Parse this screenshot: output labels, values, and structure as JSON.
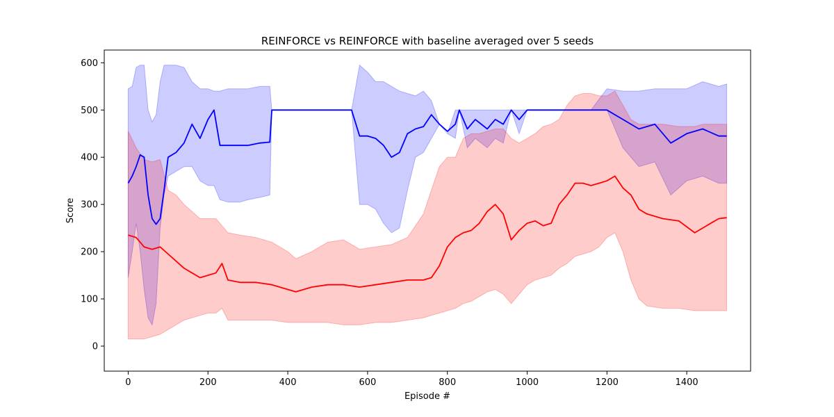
{
  "chart_data": {
    "type": "line",
    "title": "REINFORCE vs REINFORCE with baseline averaged over 5 seeds",
    "xlabel": "Episode #",
    "ylabel": "Score",
    "xlim": [
      -60,
      1560
    ],
    "ylim": [
      -53,
      627
    ],
    "x_ticks": [
      0,
      200,
      400,
      600,
      800,
      1000,
      1200,
      1400
    ],
    "y_ticks": [
      0,
      100,
      200,
      300,
      400,
      500,
      600
    ],
    "grid": false,
    "legend": "none",
    "series": [
      {
        "color": "#0000ff",
        "band_color": "#0000ff",
        "x": [
          0,
          10,
          20,
          30,
          40,
          50,
          60,
          70,
          80,
          90,
          100,
          120,
          140,
          160,
          180,
          200,
          215,
          230,
          250,
          280,
          300,
          330,
          355,
          360,
          380,
          400,
          420,
          440,
          480,
          520,
          560,
          580,
          600,
          620,
          640,
          660,
          680,
          700,
          720,
          740,
          760,
          780,
          800,
          820,
          830,
          850,
          870,
          900,
          920,
          940,
          960,
          980,
          1000,
          1040,
          1080,
          1120,
          1160,
          1200,
          1240,
          1280,
          1320,
          1360,
          1400,
          1440,
          1480,
          1500
        ],
        "y": [
          345,
          360,
          380,
          405,
          400,
          320,
          270,
          258,
          270,
          330,
          400,
          410,
          430,
          470,
          440,
          480,
          500,
          425,
          425,
          425,
          425,
          430,
          432,
          500,
          500,
          500,
          500,
          500,
          500,
          500,
          500,
          445,
          445,
          440,
          425,
          400,
          410,
          450,
          460,
          465,
          490,
          470,
          455,
          470,
          500,
          460,
          480,
          460,
          480,
          470,
          500,
          480,
          500,
          500,
          500,
          500,
          500,
          500,
          480,
          460,
          470,
          430,
          450,
          460,
          445,
          445
        ],
        "upper": [
          545,
          550,
          590,
          595,
          595,
          500,
          475,
          490,
          560,
          595,
          595,
          595,
          590,
          560,
          545,
          545,
          540,
          540,
          545,
          545,
          545,
          550,
          550,
          500,
          500,
          500,
          500,
          500,
          500,
          500,
          500,
          595,
          580,
          560,
          560,
          550,
          540,
          535,
          530,
          540,
          520,
          470,
          450,
          500,
          500,
          500,
          500,
          500,
          500,
          500,
          500,
          500,
          500,
          500,
          500,
          500,
          500,
          545,
          540,
          540,
          545,
          545,
          545,
          560,
          550,
          555
        ],
        "lower": [
          145,
          200,
          260,
          200,
          120,
          60,
          45,
          90,
          250,
          320,
          360,
          370,
          380,
          380,
          350,
          340,
          340,
          310,
          305,
          305,
          310,
          315,
          320,
          500,
          500,
          500,
          500,
          500,
          500,
          500,
          500,
          300,
          300,
          290,
          260,
          240,
          250,
          330,
          400,
          410,
          440,
          470,
          450,
          440,
          500,
          420,
          440,
          420,
          440,
          430,
          500,
          450,
          500,
          500,
          500,
          500,
          500,
          500,
          420,
          380,
          390,
          320,
          350,
          360,
          345,
          345
        ]
      },
      {
        "color": "#ff0000",
        "band_color": "#ff0000",
        "x": [
          0,
          20,
          40,
          60,
          80,
          100,
          120,
          140,
          160,
          180,
          200,
          220,
          235,
          250,
          280,
          320,
          360,
          400,
          420,
          460,
          500,
          540,
          580,
          620,
          660,
          700,
          740,
          760,
          780,
          800,
          820,
          840,
          860,
          880,
          900,
          920,
          940,
          960,
          980,
          1000,
          1020,
          1040,
          1060,
          1080,
          1100,
          1120,
          1140,
          1160,
          1180,
          1200,
          1220,
          1240,
          1260,
          1280,
          1300,
          1340,
          1380,
          1420,
          1440,
          1460,
          1480,
          1500
        ],
        "y": [
          235,
          230,
          210,
          205,
          210,
          195,
          180,
          165,
          155,
          145,
          150,
          155,
          175,
          140,
          135,
          135,
          130,
          120,
          115,
          125,
          130,
          130,
          125,
          130,
          135,
          140,
          140,
          145,
          170,
          210,
          230,
          240,
          245,
          260,
          285,
          300,
          280,
          225,
          245,
          260,
          265,
          255,
          260,
          300,
          320,
          345,
          345,
          340,
          345,
          350,
          360,
          335,
          320,
          290,
          280,
          270,
          265,
          240,
          250,
          260,
          270,
          272
        ],
        "upper": [
          455,
          420,
          395,
          390,
          395,
          330,
          320,
          300,
          285,
          270,
          270,
          270,
          255,
          240,
          235,
          230,
          220,
          200,
          185,
          200,
          220,
          225,
          205,
          210,
          215,
          230,
          280,
          330,
          380,
          400,
          400,
          440,
          450,
          450,
          455,
          460,
          460,
          440,
          430,
          440,
          450,
          465,
          470,
          480,
          510,
          530,
          535,
          535,
          530,
          530,
          540,
          510,
          480,
          470,
          470,
          470,
          465,
          465,
          470,
          470,
          470,
          470
        ],
        "lower": [
          15,
          15,
          15,
          20,
          25,
          35,
          45,
          55,
          60,
          65,
          70,
          70,
          80,
          55,
          55,
          55,
          55,
          50,
          50,
          50,
          50,
          45,
          45,
          50,
          50,
          55,
          60,
          65,
          70,
          75,
          80,
          90,
          95,
          105,
          115,
          120,
          110,
          90,
          110,
          130,
          140,
          145,
          150,
          165,
          175,
          190,
          195,
          200,
          210,
          230,
          240,
          200,
          140,
          100,
          85,
          80,
          80,
          75,
          75,
          75,
          75,
          75
        ]
      }
    ]
  }
}
